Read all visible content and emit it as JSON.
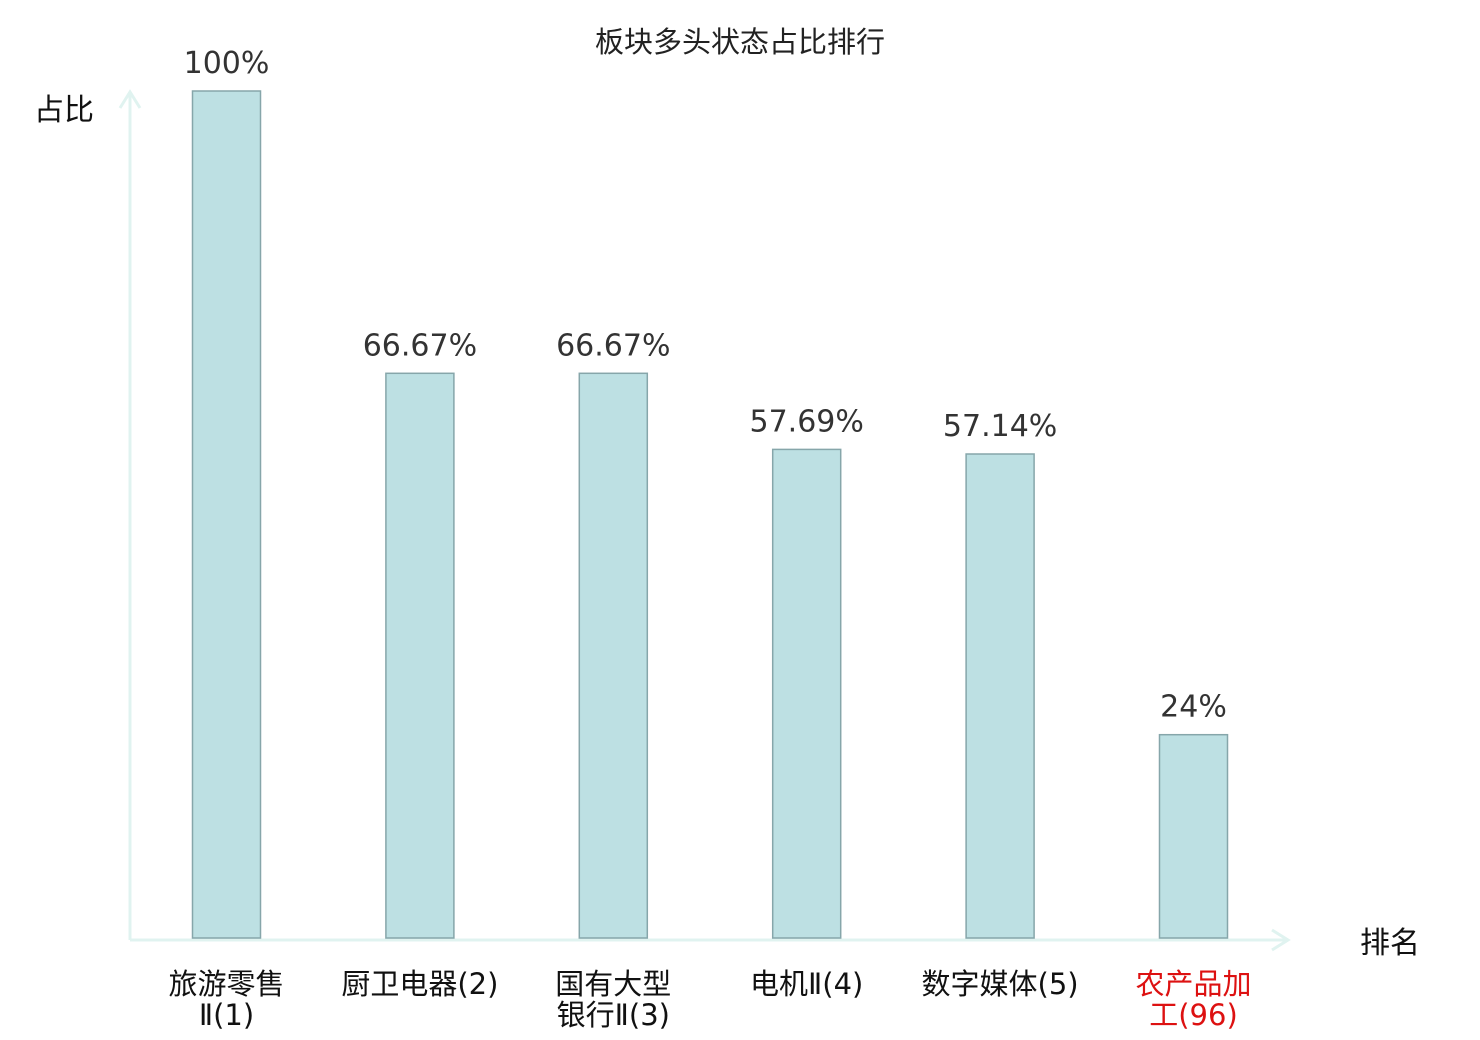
{
  "chart_data": {
    "type": "bar",
    "title": "板块多头状态占比排行",
    "ylabel": "占比",
    "xlabel": "排名",
    "ylim": [
      0,
      100
    ],
    "grid": false,
    "categories": [
      {
        "lines": [
          "旅游零售",
          "Ⅱ(1)"
        ],
        "highlight": false
      },
      {
        "lines": [
          "厨卫电器(2)"
        ],
        "highlight": false
      },
      {
        "lines": [
          "国有大型",
          "银行Ⅱ(3)"
        ],
        "highlight": false
      },
      {
        "lines": [
          "电机Ⅱ(4)"
        ],
        "highlight": false
      },
      {
        "lines": [
          "数字媒体(5)"
        ],
        "highlight": false
      },
      {
        "lines": [
          "农产品加",
          "工(96)"
        ],
        "highlight": true
      }
    ],
    "values": [
      100,
      66.67,
      66.67,
      57.69,
      57.14,
      24
    ],
    "value_labels": [
      "100%",
      "66.67%",
      "66.67%",
      "57.69%",
      "57.14%",
      "24%"
    ],
    "colors": {
      "bar_fill": "#bde0e3",
      "bar_stroke": "#86a6aa",
      "axis": "#e0f3f0",
      "text": "#111111",
      "highlight_text": "#dd1111"
    }
  }
}
